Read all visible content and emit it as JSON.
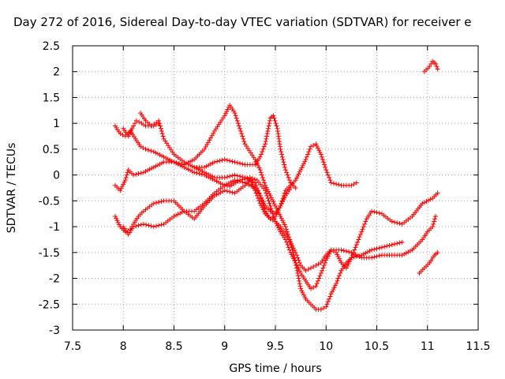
{
  "chart_data": {
    "type": "scatter",
    "title": "Day 272 of 2016, Sidereal Day-to-day VTEC variation (SDTVAR) for receiver e",
    "xlabel": "GPS time / hours",
    "ylabel": "SDTVAR / TECUs",
    "xlim": [
      7.5,
      11.5
    ],
    "ylim": [
      -3,
      2.5
    ],
    "xticks": [
      "7.5",
      "8",
      "8.5",
      "9",
      "9.5",
      "10",
      "10.5",
      "11",
      "11.5"
    ],
    "yticks": [
      "2.5",
      "2",
      "1.5",
      "1",
      "0.5",
      "0",
      "-0.5",
      "-1",
      "-1.5",
      "-2",
      "-2.5",
      "-3"
    ],
    "grid": true,
    "marker": "plus",
    "color": "#ff0000",
    "series": [
      {
        "points": [
          [
            7.92,
            0.95
          ],
          [
            7.97,
            0.8
          ],
          [
            8.02,
            0.75
          ],
          [
            8.07,
            0.85
          ],
          [
            8.12,
            0.7
          ],
          [
            8.17,
            0.55
          ],
          [
            8.22,
            0.5
          ],
          [
            8.3,
            0.45
          ],
          [
            8.4,
            0.35
          ],
          [
            8.5,
            0.25
          ],
          [
            8.6,
            0.15
          ],
          [
            8.7,
            0.05
          ],
          [
            8.8,
            0.0
          ],
          [
            8.9,
            -0.1
          ],
          [
            9.0,
            -0.2
          ],
          [
            9.05,
            -0.22
          ],
          [
            9.15,
            -0.1
          ],
          [
            9.25,
            -0.05
          ],
          [
            9.32,
            -0.1
          ],
          [
            9.4,
            -0.3
          ],
          [
            9.45,
            -0.6
          ],
          [
            9.5,
            -0.9
          ],
          [
            9.55,
            -1.0
          ],
          [
            9.62,
            -1.2
          ],
          [
            9.7,
            -1.5
          ],
          [
            9.75,
            -1.75
          ],
          [
            9.8,
            -1.85
          ],
          [
            9.85,
            -1.8
          ],
          [
            9.9,
            -1.75
          ],
          [
            9.95,
            -1.7
          ],
          [
            10.0,
            -1.55
          ],
          [
            10.05,
            -1.45
          ],
          [
            10.15,
            -1.45
          ],
          [
            10.25,
            -1.5
          ],
          [
            10.35,
            -1.6
          ],
          [
            10.45,
            -1.6
          ],
          [
            10.55,
            -1.55
          ],
          [
            10.65,
            -1.55
          ],
          [
            10.75,
            -1.55
          ],
          [
            10.85,
            -1.45
          ],
          [
            10.95,
            -1.25
          ],
          [
            11.0,
            -1.1
          ],
          [
            11.05,
            -1.0
          ],
          [
            11.08,
            -0.8
          ]
        ]
      },
      {
        "points": [
          [
            8.17,
            1.2
          ],
          [
            8.22,
            1.05
          ],
          [
            8.28,
            0.95
          ],
          [
            8.35,
            1.05
          ],
          [
            8.4,
            0.7
          ],
          [
            8.5,
            0.4
          ],
          [
            8.6,
            0.25
          ],
          [
            8.7,
            0.15
          ],
          [
            8.8,
            0.05
          ],
          [
            8.9,
            -0.05
          ],
          [
            9.0,
            -0.05
          ],
          [
            9.1,
            0.0
          ],
          [
            9.2,
            -0.05
          ],
          [
            9.3,
            -0.15
          ],
          [
            9.35,
            -0.4
          ],
          [
            9.4,
            -0.7
          ],
          [
            9.45,
            -0.85
          ],
          [
            9.5,
            -0.9
          ],
          [
            9.55,
            -1.1
          ],
          [
            9.6,
            -1.25
          ],
          [
            9.65,
            -1.5
          ],
          [
            9.7,
            -1.7
          ],
          [
            9.75,
            -1.9
          ],
          [
            9.8,
            -2.05
          ],
          [
            9.85,
            -2.2
          ],
          [
            9.9,
            -2.15
          ],
          [
            9.95,
            -1.9
          ],
          [
            10.0,
            -1.65
          ],
          [
            10.05,
            -1.45
          ],
          [
            10.1,
            -1.5
          ],
          [
            10.15,
            -1.7
          ],
          [
            10.2,
            -1.8
          ],
          [
            10.25,
            -1.6
          ],
          [
            10.3,
            -1.35
          ],
          [
            10.35,
            -1.1
          ],
          [
            10.4,
            -0.85
          ],
          [
            10.45,
            -0.7
          ],
          [
            10.55,
            -0.75
          ],
          [
            10.65,
            -0.9
          ],
          [
            10.75,
            -0.95
          ],
          [
            10.85,
            -0.8
          ],
          [
            10.95,
            -0.55
          ],
          [
            11.05,
            -0.45
          ],
          [
            11.1,
            -0.35
          ]
        ]
      },
      {
        "points": [
          [
            7.92,
            -0.2
          ],
          [
            7.97,
            -0.3
          ],
          [
            8.02,
            -0.1
          ],
          [
            8.05,
            0.1
          ],
          [
            8.1,
            0.0
          ],
          [
            8.2,
            0.05
          ],
          [
            8.3,
            0.15
          ],
          [
            8.4,
            0.25
          ],
          [
            8.5,
            0.25
          ],
          [
            8.6,
            0.2
          ],
          [
            8.7,
            0.3
          ],
          [
            8.8,
            0.5
          ],
          [
            8.9,
            0.85
          ],
          [
            9.0,
            1.15
          ],
          [
            9.05,
            1.35
          ],
          [
            9.1,
            1.2
          ],
          [
            9.15,
            0.9
          ],
          [
            9.2,
            0.6
          ],
          [
            9.3,
            0.3
          ],
          [
            9.35,
            0.1
          ],
          [
            9.4,
            -0.2
          ],
          [
            9.45,
            -0.4
          ],
          [
            9.5,
            -0.6
          ],
          [
            9.55,
            -0.8
          ],
          [
            9.6,
            -1.0
          ],
          [
            9.65,
            -1.3
          ],
          [
            9.7,
            -1.7
          ],
          [
            9.75,
            -2.2
          ],
          [
            9.8,
            -2.4
          ],
          [
            9.85,
            -2.5
          ],
          [
            9.9,
            -2.6
          ],
          [
            9.95,
            -2.6
          ],
          [
            10.0,
            -2.55
          ],
          [
            10.05,
            -2.3
          ],
          [
            10.1,
            -2.1
          ],
          [
            10.15,
            -1.85
          ],
          [
            10.2,
            -1.7
          ],
          [
            10.25,
            -1.6
          ],
          [
            10.35,
            -1.55
          ],
          [
            10.45,
            -1.45
          ],
          [
            10.55,
            -1.4
          ],
          [
            10.65,
            -1.35
          ],
          [
            10.75,
            -1.3
          ]
        ]
      },
      {
        "points": [
          [
            7.92,
            -0.8
          ],
          [
            7.97,
            -1.0
          ],
          [
            8.02,
            -1.1
          ],
          [
            8.07,
            -1.05
          ],
          [
            8.1,
            -0.95
          ],
          [
            8.15,
            -0.8
          ],
          [
            8.2,
            -0.7
          ],
          [
            8.3,
            -0.55
          ],
          [
            8.4,
            -0.5
          ],
          [
            8.5,
            -0.5
          ],
          [
            8.6,
            -0.7
          ],
          [
            8.7,
            -0.85
          ],
          [
            8.8,
            -0.6
          ],
          [
            8.9,
            -0.4
          ],
          [
            9.0,
            -0.3
          ],
          [
            9.1,
            -0.35
          ],
          [
            9.2,
            -0.2
          ],
          [
            9.25,
            -0.1
          ],
          [
            9.3,
            -0.3
          ],
          [
            9.35,
            -0.55
          ],
          [
            9.4,
            -0.75
          ],
          [
            9.45,
            -0.85
          ],
          [
            9.5,
            -0.8
          ],
          [
            9.55,
            -0.6
          ],
          [
            9.6,
            -0.3
          ],
          [
            9.65,
            -0.2
          ],
          [
            9.7,
            -0.1
          ],
          [
            9.75,
            0.1
          ],
          [
            9.8,
            0.3
          ],
          [
            9.85,
            0.55
          ],
          [
            9.9,
            0.6
          ],
          [
            9.95,
            0.4
          ],
          [
            10.0,
            0.1
          ],
          [
            10.05,
            -0.15
          ],
          [
            10.15,
            -0.2
          ],
          [
            10.25,
            -0.2
          ],
          [
            10.3,
            -0.15
          ]
        ]
      },
      {
        "points": [
          [
            8.0,
            -1.0
          ],
          [
            8.05,
            -1.15
          ],
          [
            8.1,
            -1.0
          ],
          [
            8.2,
            -0.95
          ],
          [
            8.3,
            -1.0
          ],
          [
            8.4,
            -0.95
          ],
          [
            8.5,
            -0.8
          ],
          [
            8.6,
            -0.7
          ],
          [
            8.7,
            -0.7
          ],
          [
            8.8,
            -0.55
          ],
          [
            8.9,
            -0.35
          ],
          [
            9.0,
            -0.2
          ],
          [
            9.1,
            -0.1
          ],
          [
            9.2,
            -0.15
          ],
          [
            9.3,
            -0.25
          ],
          [
            9.35,
            -0.4
          ],
          [
            9.4,
            -0.6
          ],
          [
            9.45,
            -0.7
          ],
          [
            9.5,
            -0.75
          ],
          [
            9.55,
            -0.6
          ],
          [
            9.6,
            -0.4
          ],
          [
            9.65,
            -0.25
          ]
        ]
      },
      {
        "points": [
          [
            8.7,
            0.15
          ],
          [
            8.8,
            0.15
          ],
          [
            8.9,
            0.25
          ],
          [
            9.0,
            0.3
          ],
          [
            9.1,
            0.25
          ],
          [
            9.2,
            0.2
          ],
          [
            9.3,
            0.2
          ],
          [
            9.35,
            0.35
          ],
          [
            9.4,
            0.6
          ],
          [
            9.45,
            1.1
          ],
          [
            9.48,
            1.15
          ],
          [
            9.52,
            0.9
          ],
          [
            9.55,
            0.5
          ],
          [
            9.6,
            0.1
          ],
          [
            9.65,
            -0.15
          ],
          [
            9.7,
            -0.25
          ]
        ]
      },
      {
        "points": [
          [
            8.0,
            0.9
          ],
          [
            8.05,
            0.75
          ],
          [
            8.1,
            0.95
          ],
          [
            8.13,
            1.05
          ],
          [
            8.18,
            1.0
          ],
          [
            8.22,
            0.95
          ],
          [
            8.3,
            0.95
          ],
          [
            8.35,
            1.0
          ]
        ]
      },
      {
        "points": [
          [
            10.92,
            -1.9
          ],
          [
            10.97,
            -1.8
          ],
          [
            11.02,
            -1.7
          ],
          [
            11.07,
            -1.55
          ],
          [
            11.1,
            -1.5
          ]
        ]
      },
      {
        "points": [
          [
            10.97,
            2.0
          ],
          [
            11.02,
            2.1
          ],
          [
            11.05,
            2.2
          ],
          [
            11.08,
            2.15
          ],
          [
            11.1,
            2.05
          ]
        ]
      }
    ]
  }
}
